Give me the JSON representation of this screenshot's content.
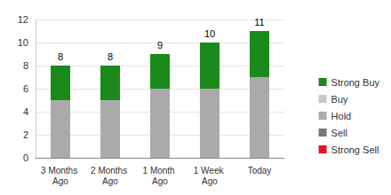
{
  "chart_data": {
    "type": "bar",
    "stacked": true,
    "grid": true,
    "legend": "right",
    "categories": [
      "3 Months Ago",
      "2 Months Ago",
      "1 Month Ago",
      "1 Week Ago",
      "Today"
    ],
    "series": [
      {
        "name": "Strong Buy",
        "color": "#1a8a1a",
        "values": [
          3,
          3,
          3,
          4,
          4
        ]
      },
      {
        "name": "Buy",
        "color": "#c8c8c8",
        "values": [
          0,
          0,
          0,
          0,
          0
        ]
      },
      {
        "name": "Hold",
        "color": "#aaaaaa",
        "values": [
          5,
          5,
          6,
          6,
          7
        ]
      },
      {
        "name": "Sell",
        "color": "#777777",
        "values": [
          0,
          0,
          0,
          0,
          0
        ]
      },
      {
        "name": "Strong Sell",
        "color": "#e0141e",
        "values": [
          0,
          0,
          0,
          0,
          0
        ]
      }
    ],
    "totals": [
      8,
      8,
      9,
      10,
      11
    ],
    "ylim": [
      0,
      12
    ],
    "yticks": [
      0,
      2,
      4,
      6,
      8,
      10,
      12
    ]
  }
}
